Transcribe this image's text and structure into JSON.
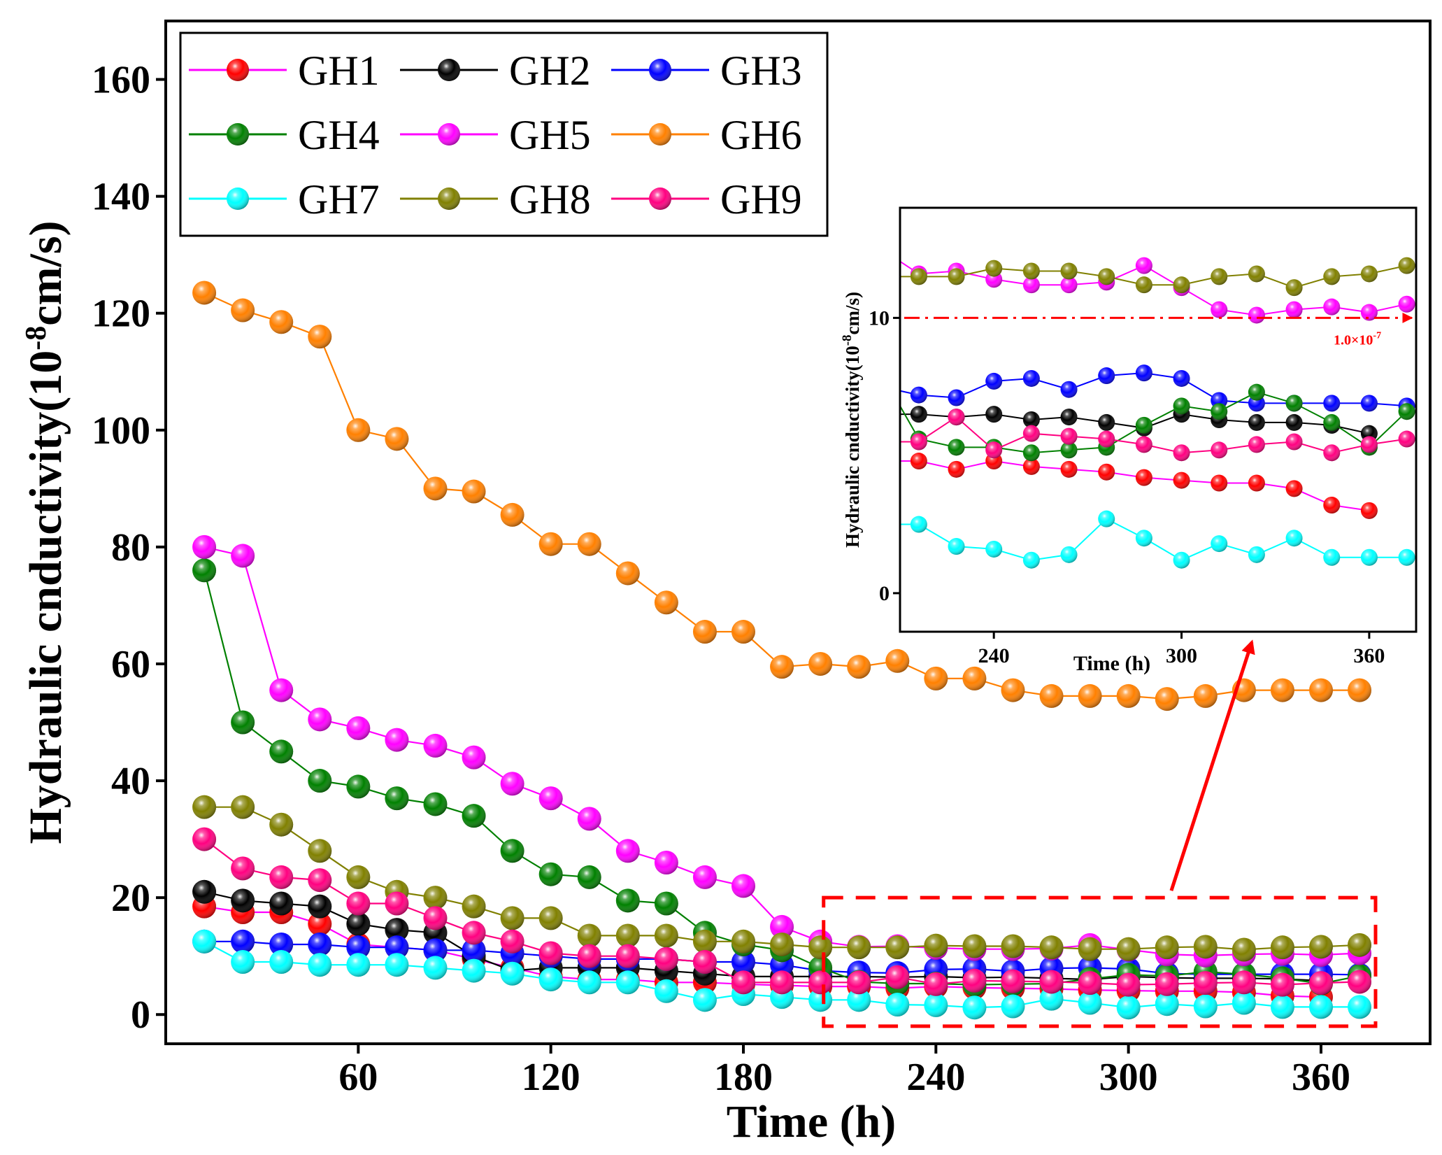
{
  "chart_data": {
    "type": "line",
    "xlabel": "Time (h)",
    "ylabel_main": "Hydraulic cnductivity(10",
    "ylabel_sup": "-8",
    "ylabel_tail": "cm/s)",
    "xlim": [
      0,
      394
    ],
    "ylim": [
      -5,
      170
    ],
    "xticks": [
      60,
      120,
      180,
      240,
      300,
      360
    ],
    "yticks": [
      0,
      20,
      40,
      60,
      80,
      100,
      120,
      140,
      160
    ],
    "x": [
      12,
      24,
      36,
      48,
      60,
      72,
      84,
      96,
      108,
      120,
      132,
      144,
      156,
      168,
      180,
      192,
      204,
      216,
      228,
      240,
      252,
      264,
      276,
      288,
      300,
      312,
      324,
      336,
      348,
      360,
      372
    ],
    "series": [
      {
        "name": "GH1",
        "color": "#ff0000",
        "line_color": "#ff00ff",
        "values": [
          18.5,
          17.5,
          17.5,
          15.5,
          12,
          11.5,
          11,
          9.5,
          8,
          6.5,
          6,
          6,
          5.5,
          5.5,
          5.2,
          5,
          4.8,
          4.8,
          4.5,
          4.8,
          4.6,
          4.5,
          4.4,
          4.2,
          4.1,
          4.0,
          4.0,
          3.8,
          3.2,
          3.0,
          null
        ]
      },
      {
        "name": "GH2",
        "color": "#000000",
        "line_color": "#000000",
        "values": [
          21,
          19.5,
          19,
          18.5,
          15.5,
          14.5,
          14,
          10,
          7.5,
          8,
          8,
          8,
          7.5,
          7,
          6.5,
          6.5,
          6.5,
          6.5,
          6.4,
          6.5,
          6.3,
          6.4,
          6.2,
          6.0,
          6.5,
          6.3,
          6.2,
          6.2,
          6.1,
          5.8,
          null
        ]
      },
      {
        "name": "GH3",
        "color": "#0000ff",
        "line_color": "#0000ff",
        "values": [
          12.5,
          12.5,
          12,
          12,
          11.5,
          11.5,
          11,
          11,
          10.5,
          10,
          9.5,
          9.5,
          9.5,
          9,
          9,
          8.5,
          7.5,
          7.2,
          7.1,
          7.7,
          7.8,
          7.4,
          7.9,
          8.0,
          7.8,
          7.0,
          6.9,
          6.9,
          6.9,
          6.9,
          6.8
        ]
      },
      {
        "name": "GH4",
        "color": "#008000",
        "line_color": "#008000",
        "values": [
          76,
          50,
          45,
          40,
          39,
          37,
          36,
          34,
          28,
          24,
          23.5,
          19.5,
          19,
          14,
          12,
          11,
          8,
          5.6,
          5.3,
          5.3,
          5.1,
          5.2,
          5.3,
          6.1,
          6.8,
          6.6,
          7.3,
          6.9,
          6.2,
          5.3,
          6.6
        ]
      },
      {
        "name": "GH5",
        "color": "#ff00ff",
        "line_color": "#ff00ff",
        "values": [
          80,
          78.5,
          55.5,
          50.5,
          49,
          47,
          46,
          44,
          39.5,
          37,
          33.5,
          28,
          26,
          23.5,
          22,
          15,
          12.5,
          11.6,
          11.7,
          11.4,
          11.2,
          11.2,
          11.3,
          11.9,
          11.1,
          10.3,
          10.1,
          10.3,
          10.4,
          10.2,
          10.5
        ]
      },
      {
        "name": "GH6",
        "color": "#ff8000",
        "line_color": "#ff8000",
        "values": [
          123.5,
          120.5,
          118.5,
          116,
          100,
          98.5,
          90,
          89.5,
          85.5,
          80.5,
          80.5,
          75.5,
          70.5,
          65.5,
          65.5,
          59.5,
          60,
          59.5,
          60.5,
          57.5,
          57.5,
          55.5,
          54.5,
          54.5,
          54.5,
          54,
          54.5,
          55.5,
          55.5,
          55.5,
          55.5
        ]
      },
      {
        "name": "GH7",
        "color": "#00ffff",
        "line_color": "#00ffff",
        "values": [
          12.5,
          9,
          9,
          8.5,
          8.5,
          8.5,
          8,
          7.5,
          7,
          6,
          5.5,
          5.5,
          4,
          2.5,
          3.5,
          3,
          2.5,
          2.5,
          1.7,
          1.6,
          1.2,
          1.4,
          2.7,
          2.0,
          1.2,
          1.8,
          1.4,
          2.0,
          1.3,
          1.3,
          1.3
        ]
      },
      {
        "name": "GH8",
        "color": "#808000",
        "line_color": "#808000",
        "values": [
          35.5,
          35.5,
          32.5,
          28,
          23.5,
          21,
          20,
          18.5,
          16.5,
          16.5,
          13.5,
          13.5,
          13.5,
          12.5,
          12.5,
          12,
          11.5,
          11.5,
          11.5,
          11.8,
          11.7,
          11.7,
          11.5,
          11.2,
          11.2,
          11.5,
          11.6,
          11.1,
          11.5,
          11.6,
          11.9
        ]
      },
      {
        "name": "GH9",
        "color": "#ff0080",
        "line_color": "#ff0080",
        "values": [
          30,
          25,
          23.5,
          23,
          19,
          19,
          16.5,
          14,
          12.5,
          10.5,
          10,
          10,
          9.5,
          9,
          5.5,
          5.5,
          5.5,
          5.5,
          6.4,
          5.2,
          5.8,
          5.7,
          5.6,
          5.4,
          5.1,
          5.2,
          5.4,
          5.5,
          5.1,
          5.4,
          5.6
        ]
      }
    ],
    "legend": {
      "position": "top-left",
      "columns": 3
    },
    "highlight_box": {
      "x_range": [
        205,
        377
      ],
      "y_range": [
        -2,
        20
      ]
    },
    "inset": {
      "xlabel": "Time (h)",
      "ylabel_main": "Hydraulic cnductivity(10",
      "ylabel_sup": "-8",
      "ylabel_tail": "cm/s)",
      "xlim": [
        210,
        375
      ],
      "ylim": [
        -1.4,
        14
      ],
      "xticks": [
        240,
        300,
        360
      ],
      "yticks": [
        0,
        10
      ],
      "threshold": {
        "value": 10,
        "label": "1.0×10",
        "label_sup": "-7",
        "color": "#ff0000"
      }
    }
  }
}
